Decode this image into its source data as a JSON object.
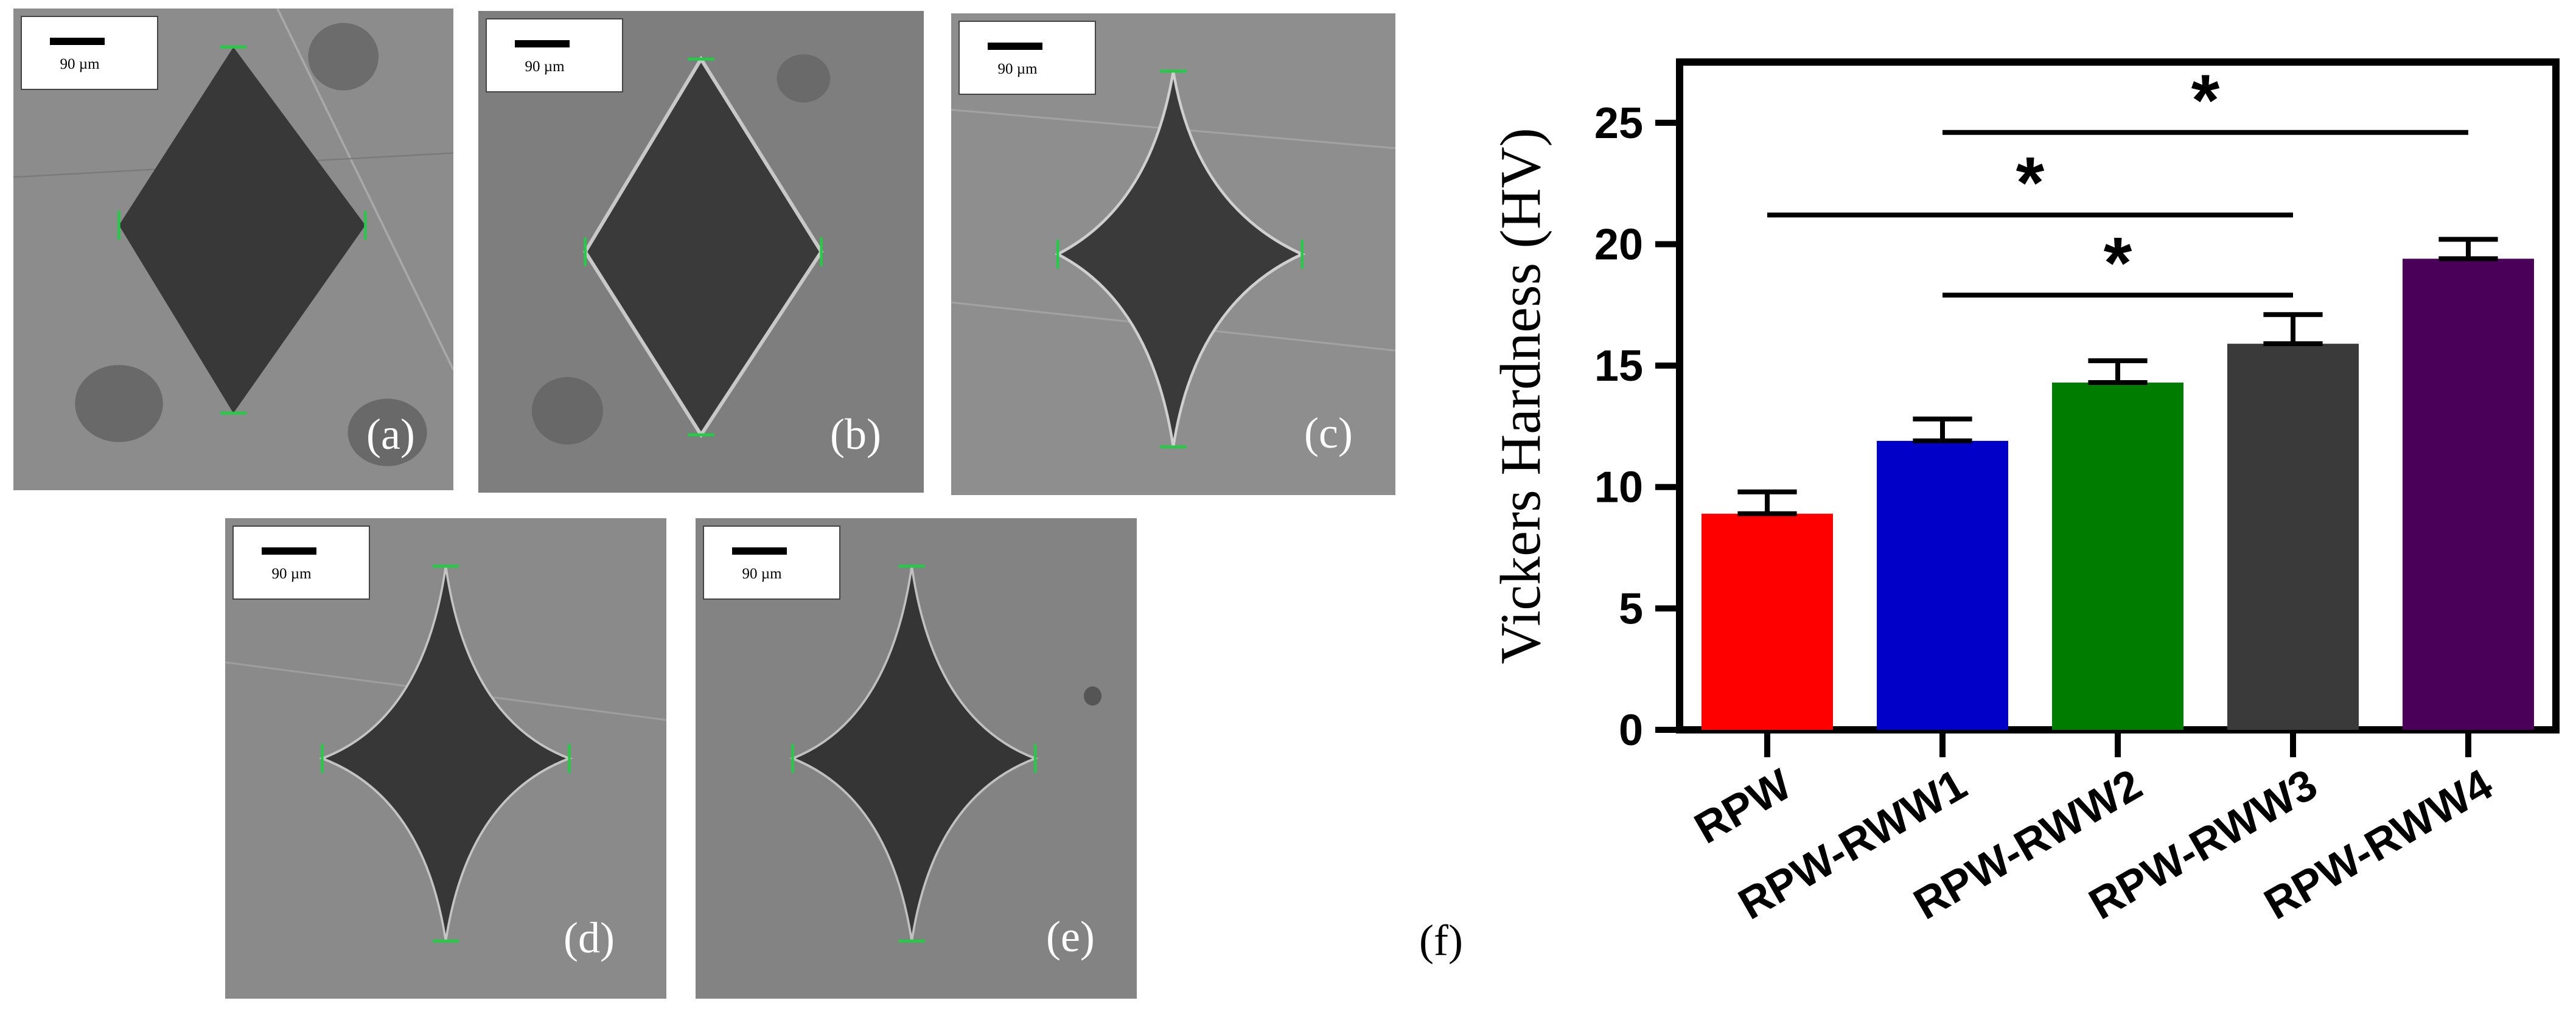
{
  "panels": [
    {
      "label": "(a)",
      "scale": "90 µm"
    },
    {
      "label": "(b)",
      "scale": "90 µm"
    },
    {
      "label": "(c)",
      "scale": "90 µm"
    },
    {
      "label": "(d)",
      "scale": "90 µm"
    },
    {
      "label": "(e)",
      "scale": "90 µm"
    }
  ],
  "chart_panel_label": "(f)",
  "chart_data": {
    "type": "bar",
    "ylabel": "Vickers Hardness (HV)",
    "xlabel": "",
    "categories": [
      "RPW",
      "RPW-RWW1",
      "RPW-RWW2",
      "RPW-RWW3",
      "RPW-RWW4"
    ],
    "values": [
      8.9,
      11.9,
      14.3,
      15.9,
      19.4
    ],
    "errors": [
      0.9,
      0.9,
      0.9,
      1.2,
      0.8
    ],
    "bar_colors": [
      "#ff0000",
      "#0000c8",
      "#007d00",
      "#3a3a3a",
      "#4a0058"
    ],
    "ylim": [
      0,
      27.5
    ],
    "yticks": [
      0,
      5,
      10,
      15,
      20,
      25
    ],
    "grid": false,
    "significance": [
      {
        "from": "RPW-RWW1",
        "to": "RPW-RWW4",
        "y": 24.6,
        "label": "*"
      },
      {
        "from": "RPW",
        "to": "RPW-RWW3",
        "y": 21.2,
        "label": "*"
      },
      {
        "from": "RPW-RWW1",
        "to": "RPW-RWW3",
        "y": 17.9,
        "label": "*"
      }
    ]
  }
}
